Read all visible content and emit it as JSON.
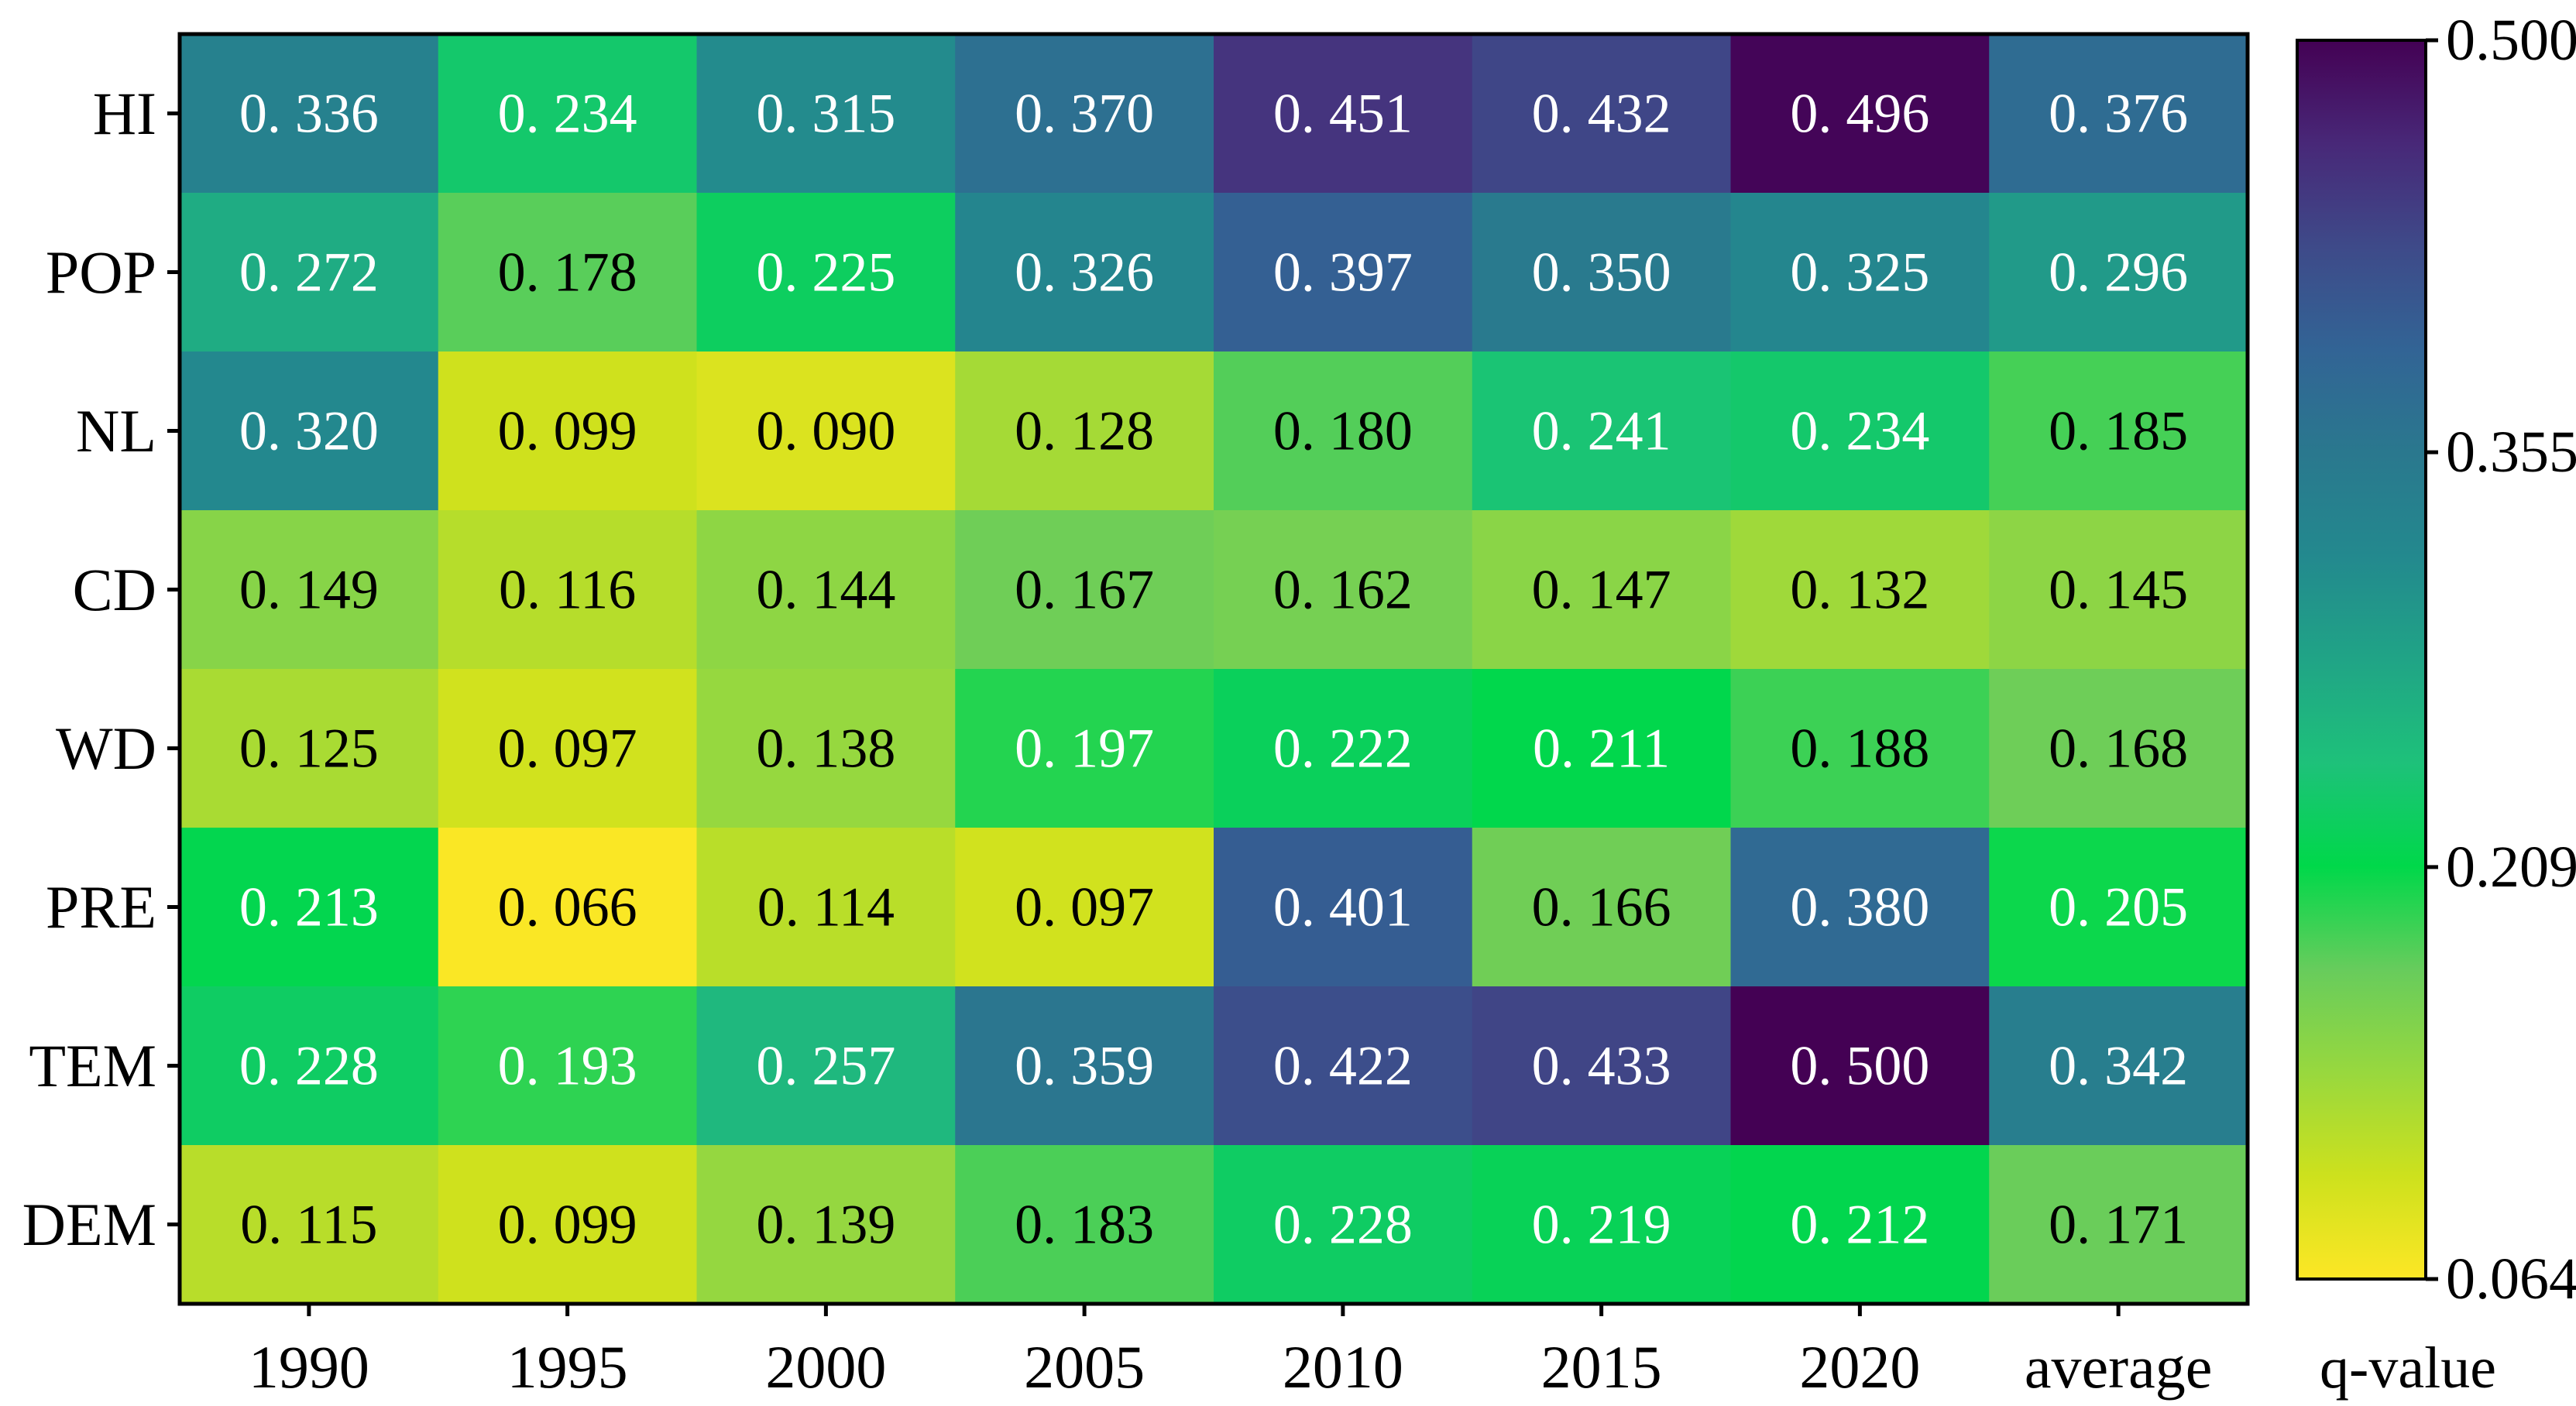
{
  "chart_data": {
    "type": "heatmap",
    "title": "",
    "xlabel": "",
    "ylabel": "",
    "x_categories": [
      "1990",
      "1995",
      "2000",
      "2005",
      "2010",
      "2015",
      "2020",
      "average"
    ],
    "y_categories": [
      "HI",
      "POP",
      "NL",
      "CD",
      "WD",
      "PRE",
      "TEM",
      "DEM"
    ],
    "values": [
      [
        0.336,
        0.234,
        0.315,
        0.37,
        0.451,
        0.432,
        0.496,
        0.376
      ],
      [
        0.272,
        0.178,
        0.225,
        0.326,
        0.397,
        0.35,
        0.325,
        0.296
      ],
      [
        0.32,
        0.099,
        0.09,
        0.128,
        0.18,
        0.241,
        0.234,
        0.185
      ],
      [
        0.149,
        0.116,
        0.144,
        0.167,
        0.162,
        0.147,
        0.132,
        0.145
      ],
      [
        0.125,
        0.097,
        0.138,
        0.197,
        0.222,
        0.211,
        0.188,
        0.168
      ],
      [
        0.213,
        0.066,
        0.114,
        0.097,
        0.401,
        0.166,
        0.38,
        0.205
      ],
      [
        0.228,
        0.193,
        0.257,
        0.359,
        0.422,
        0.433,
        0.5,
        0.342
      ],
      [
        0.115,
        0.099,
        0.139,
        0.183,
        0.228,
        0.219,
        0.212,
        0.171
      ]
    ],
    "cell_labels": [
      [
        "0. 336",
        "0. 234",
        "0. 315",
        "0. 370",
        "0. 451",
        "0. 432",
        "0. 496",
        "0. 376"
      ],
      [
        "0. 272",
        "0. 178",
        "0. 225",
        "0. 326",
        "0. 397",
        "0. 350",
        "0. 325",
        "0. 296"
      ],
      [
        "0. 320",
        "0. 099",
        "0. 090",
        "0. 128",
        "0. 180",
        "0. 241",
        "0. 234",
        "0. 185"
      ],
      [
        "0. 149",
        "0. 116",
        "0. 144",
        "0. 167",
        "0. 162",
        "0. 147",
        "0. 132",
        "0. 145"
      ],
      [
        "0. 125",
        "0. 097",
        "0. 138",
        "0. 197",
        "0. 222",
        "0. 211",
        "0. 188",
        "0. 168"
      ],
      [
        "0. 213",
        "0. 066",
        "0. 114",
        "0. 097",
        "0. 401",
        "0. 166",
        "0. 380",
        "0. 205"
      ],
      [
        "0. 228",
        "0. 193",
        "0. 257",
        "0. 359",
        "0. 422",
        "0. 433",
        "0. 500",
        "0. 342"
      ],
      [
        "0. 115",
        "0. 099",
        "0. 139",
        "0. 183",
        "0. 228",
        "0. 219",
        "0. 212",
        "0. 171"
      ]
    ],
    "colorbar": {
      "label": "q-value",
      "min": 0.064,
      "max": 0.5,
      "ticks": [
        0.064,
        0.209,
        0.355,
        0.5
      ],
      "tick_labels": [
        "0.064",
        "0.209",
        "0.355",
        "0.500"
      ],
      "colormap": "viridis-reversed",
      "stops": [
        "#fde725",
        "#cde11d",
        "#98d83e",
        "#67cc5c",
        "#00d84a",
        "#1ec17a",
        "#20a486",
        "#23898e",
        "#2a788e",
        "#326495",
        "#3e4a89",
        "#482878",
        "#440154"
      ]
    },
    "grid": false,
    "legend": "right"
  }
}
